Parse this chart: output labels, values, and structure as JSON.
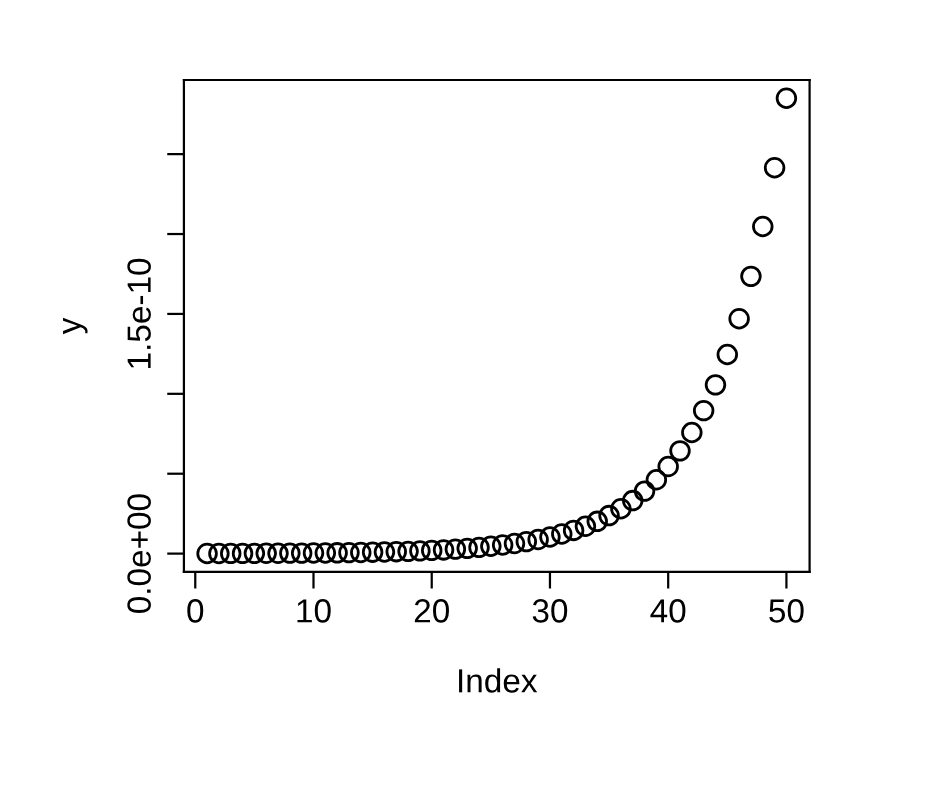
{
  "chart_data": {
    "type": "scatter",
    "xlabel": "Index",
    "ylabel": "y",
    "marker": "circle",
    "grid": false,
    "legend": false,
    "x": [
      1,
      2,
      3,
      4,
      5,
      6,
      7,
      8,
      9,
      10,
      11,
      12,
      13,
      14,
      15,
      16,
      17,
      18,
      19,
      20,
      21,
      22,
      23,
      24,
      25,
      26,
      27,
      28,
      29,
      30,
      31,
      32,
      33,
      34,
      35,
      36,
      37,
      38,
      39,
      40,
      41,
      42,
      43,
      44,
      45,
      46,
      47,
      48,
      49,
      50
    ],
    "series": [
      {
        "color": "#000000",
        "values": [
          8e-14,
          1e-13,
          1.2e-13,
          1.4e-13,
          1.6e-13,
          2e-13,
          2e-13,
          3e-13,
          3e-13,
          4e-13,
          4e-13,
          5e-13,
          6e-13,
          7e-13,
          9e-13,
          1e-12,
          1.2e-12,
          1.4e-12,
          1.7e-12,
          2e-12,
          2.3e-12,
          2.8e-12,
          3.3e-12,
          3.9e-12,
          4.6e-12,
          5.4e-12,
          6.3e-12,
          7.5e-12,
          8.8e-12,
          1.04e-11,
          1.23e-11,
          1.45e-11,
          1.71e-11,
          2.02e-11,
          2.38e-11,
          2.81e-11,
          3.32e-11,
          3.91e-11,
          4.62e-11,
          5.45e-11,
          6.43e-11,
          7.58e-11,
          8.95e-11,
          1.056e-10,
          1.246e-10,
          1.47e-10,
          1.735e-10,
          2.047e-10,
          2.415e-10,
          2.85e-10
        ]
      }
    ],
    "xlim": [
      -0.96,
      51.96
    ],
    "xticks": [
      0,
      10,
      20,
      30,
      40,
      50
    ],
    "ylim": [
      -1.14e-11,
      2.964e-10
    ],
    "yticks": [
      {
        "value": 0,
        "label": "0.0e+00"
      },
      {
        "value": 5e-11,
        "label": null
      },
      {
        "value": 1e-10,
        "label": null
      },
      {
        "value": 1.5e-10,
        "label": "1.5e-10"
      },
      {
        "value": 2e-10,
        "label": null
      },
      {
        "value": 2.5e-10,
        "label": null
      }
    ]
  }
}
